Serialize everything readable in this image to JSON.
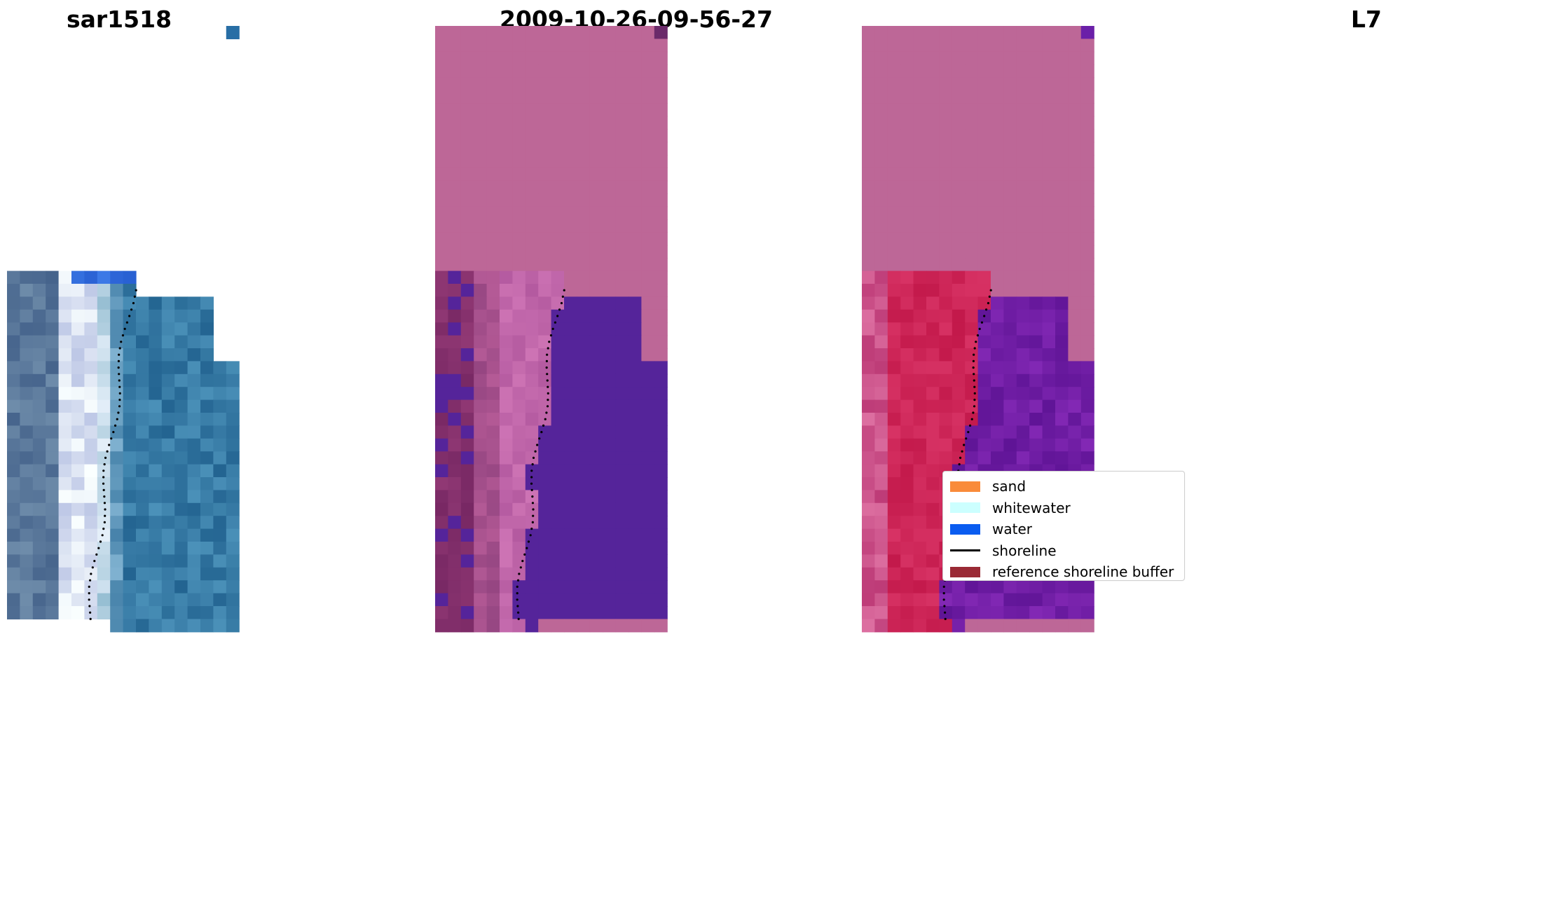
{
  "panels": [
    {
      "title": "sar1518",
      "kind": "rgb"
    },
    {
      "title": "2009-10-26-09-56-27",
      "kind": "classified"
    },
    {
      "title": "L7",
      "kind": "mndwi"
    }
  ],
  "legend": {
    "items": [
      {
        "label": "sand",
        "type": "patch",
        "color": "#F98B3A"
      },
      {
        "label": "whitewater",
        "type": "patch",
        "color": "#CCFFFF"
      },
      {
        "label": "water",
        "type": "patch",
        "color": "#0A5CF0"
      },
      {
        "label": "shoreline",
        "type": "line",
        "color": "#000000"
      },
      {
        "label": "reference shoreline buffer",
        "type": "patch",
        "color": "#9A2A35"
      }
    ]
  },
  "colors": {
    "nodata_pink": "#BD6797",
    "classified_water": "#55249A",
    "mndwi_land": "#C72556",
    "mndwi_water": "#6B1FA0",
    "rgb_water": "#2E6BA0"
  }
}
